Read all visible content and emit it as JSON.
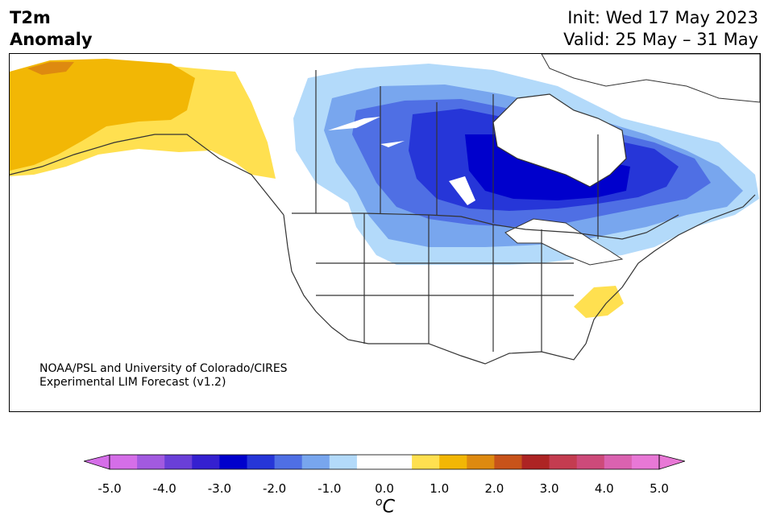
{
  "title": {
    "line1": "T2m",
    "line2": "Anomaly"
  },
  "init": "Init: Wed 17 May 2023",
  "valid": "Valid: 25 May – 31 May",
  "credit": {
    "line1": "NOAA/PSL and University of Colorado/CIRES",
    "line2": "Experimental LIM Forecast (v1.2)"
  },
  "colorbar": {
    "ticks": [
      "-5.0",
      "-4.0",
      "-3.0",
      "-2.0",
      "-1.0",
      "0.0",
      "1.0",
      "2.0",
      "3.0",
      "4.0",
      "5.0"
    ],
    "unit_base": "C",
    "unit_sup": "o",
    "colors": [
      "#d56ee8",
      "#a25ae0",
      "#6a3fd8",
      "#3520d0",
      "#0000cc",
      "#2636d8",
      "#4f6fe4",
      "#78a6ee",
      "#b3dafa",
      "#ffffff",
      "#ffffff",
      "#ffe050",
      "#f2b705",
      "#de8a10",
      "#c8531a",
      "#ad2424",
      "#c43c50",
      "#cd4a7a",
      "#da62b0",
      "#e878d6"
    ]
  },
  "legend_colors": {
    "cold_max": "#0000cc",
    "cold_mid": "#4f6fe4",
    "cold_light": "#b3dafa",
    "warm_light": "#ffe050",
    "warm_mid": "#f2b705",
    "warm_dark": "#de8a10"
  }
}
